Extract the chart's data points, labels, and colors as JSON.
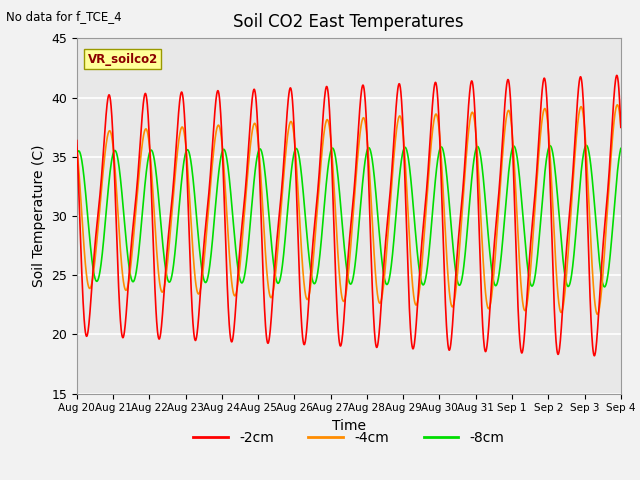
{
  "title": "Soil CO2 East Temperatures",
  "top_left_text": "No data for f_TCE_4",
  "legend_box_text": "VR_soilco2",
  "xlabel": "Time",
  "ylabel": "Soil Temperature (C)",
  "ylim": [
    15,
    45
  ],
  "x_tick_labels": [
    "Aug 20",
    "Aug 21",
    "Aug 22",
    "Aug 23",
    "Aug 24",
    "Aug 25",
    "Aug 26",
    "Aug 27",
    "Aug 28",
    "Aug 29",
    "Aug 30",
    "Aug 31",
    "Sep 1",
    "Sep 2",
    "Sep 3",
    "Sep 4"
  ],
  "line_colors": {
    "2cm": "#FF0000",
    "4cm": "#FF8C00",
    "8cm": "#00DD00"
  },
  "legend_labels": [
    "-2cm",
    "-4cm",
    "-8cm"
  ],
  "bg_color": "#E8E8E8",
  "fig_bg_color": "#F2F2F2",
  "grid_color": "white",
  "num_days": 15
}
